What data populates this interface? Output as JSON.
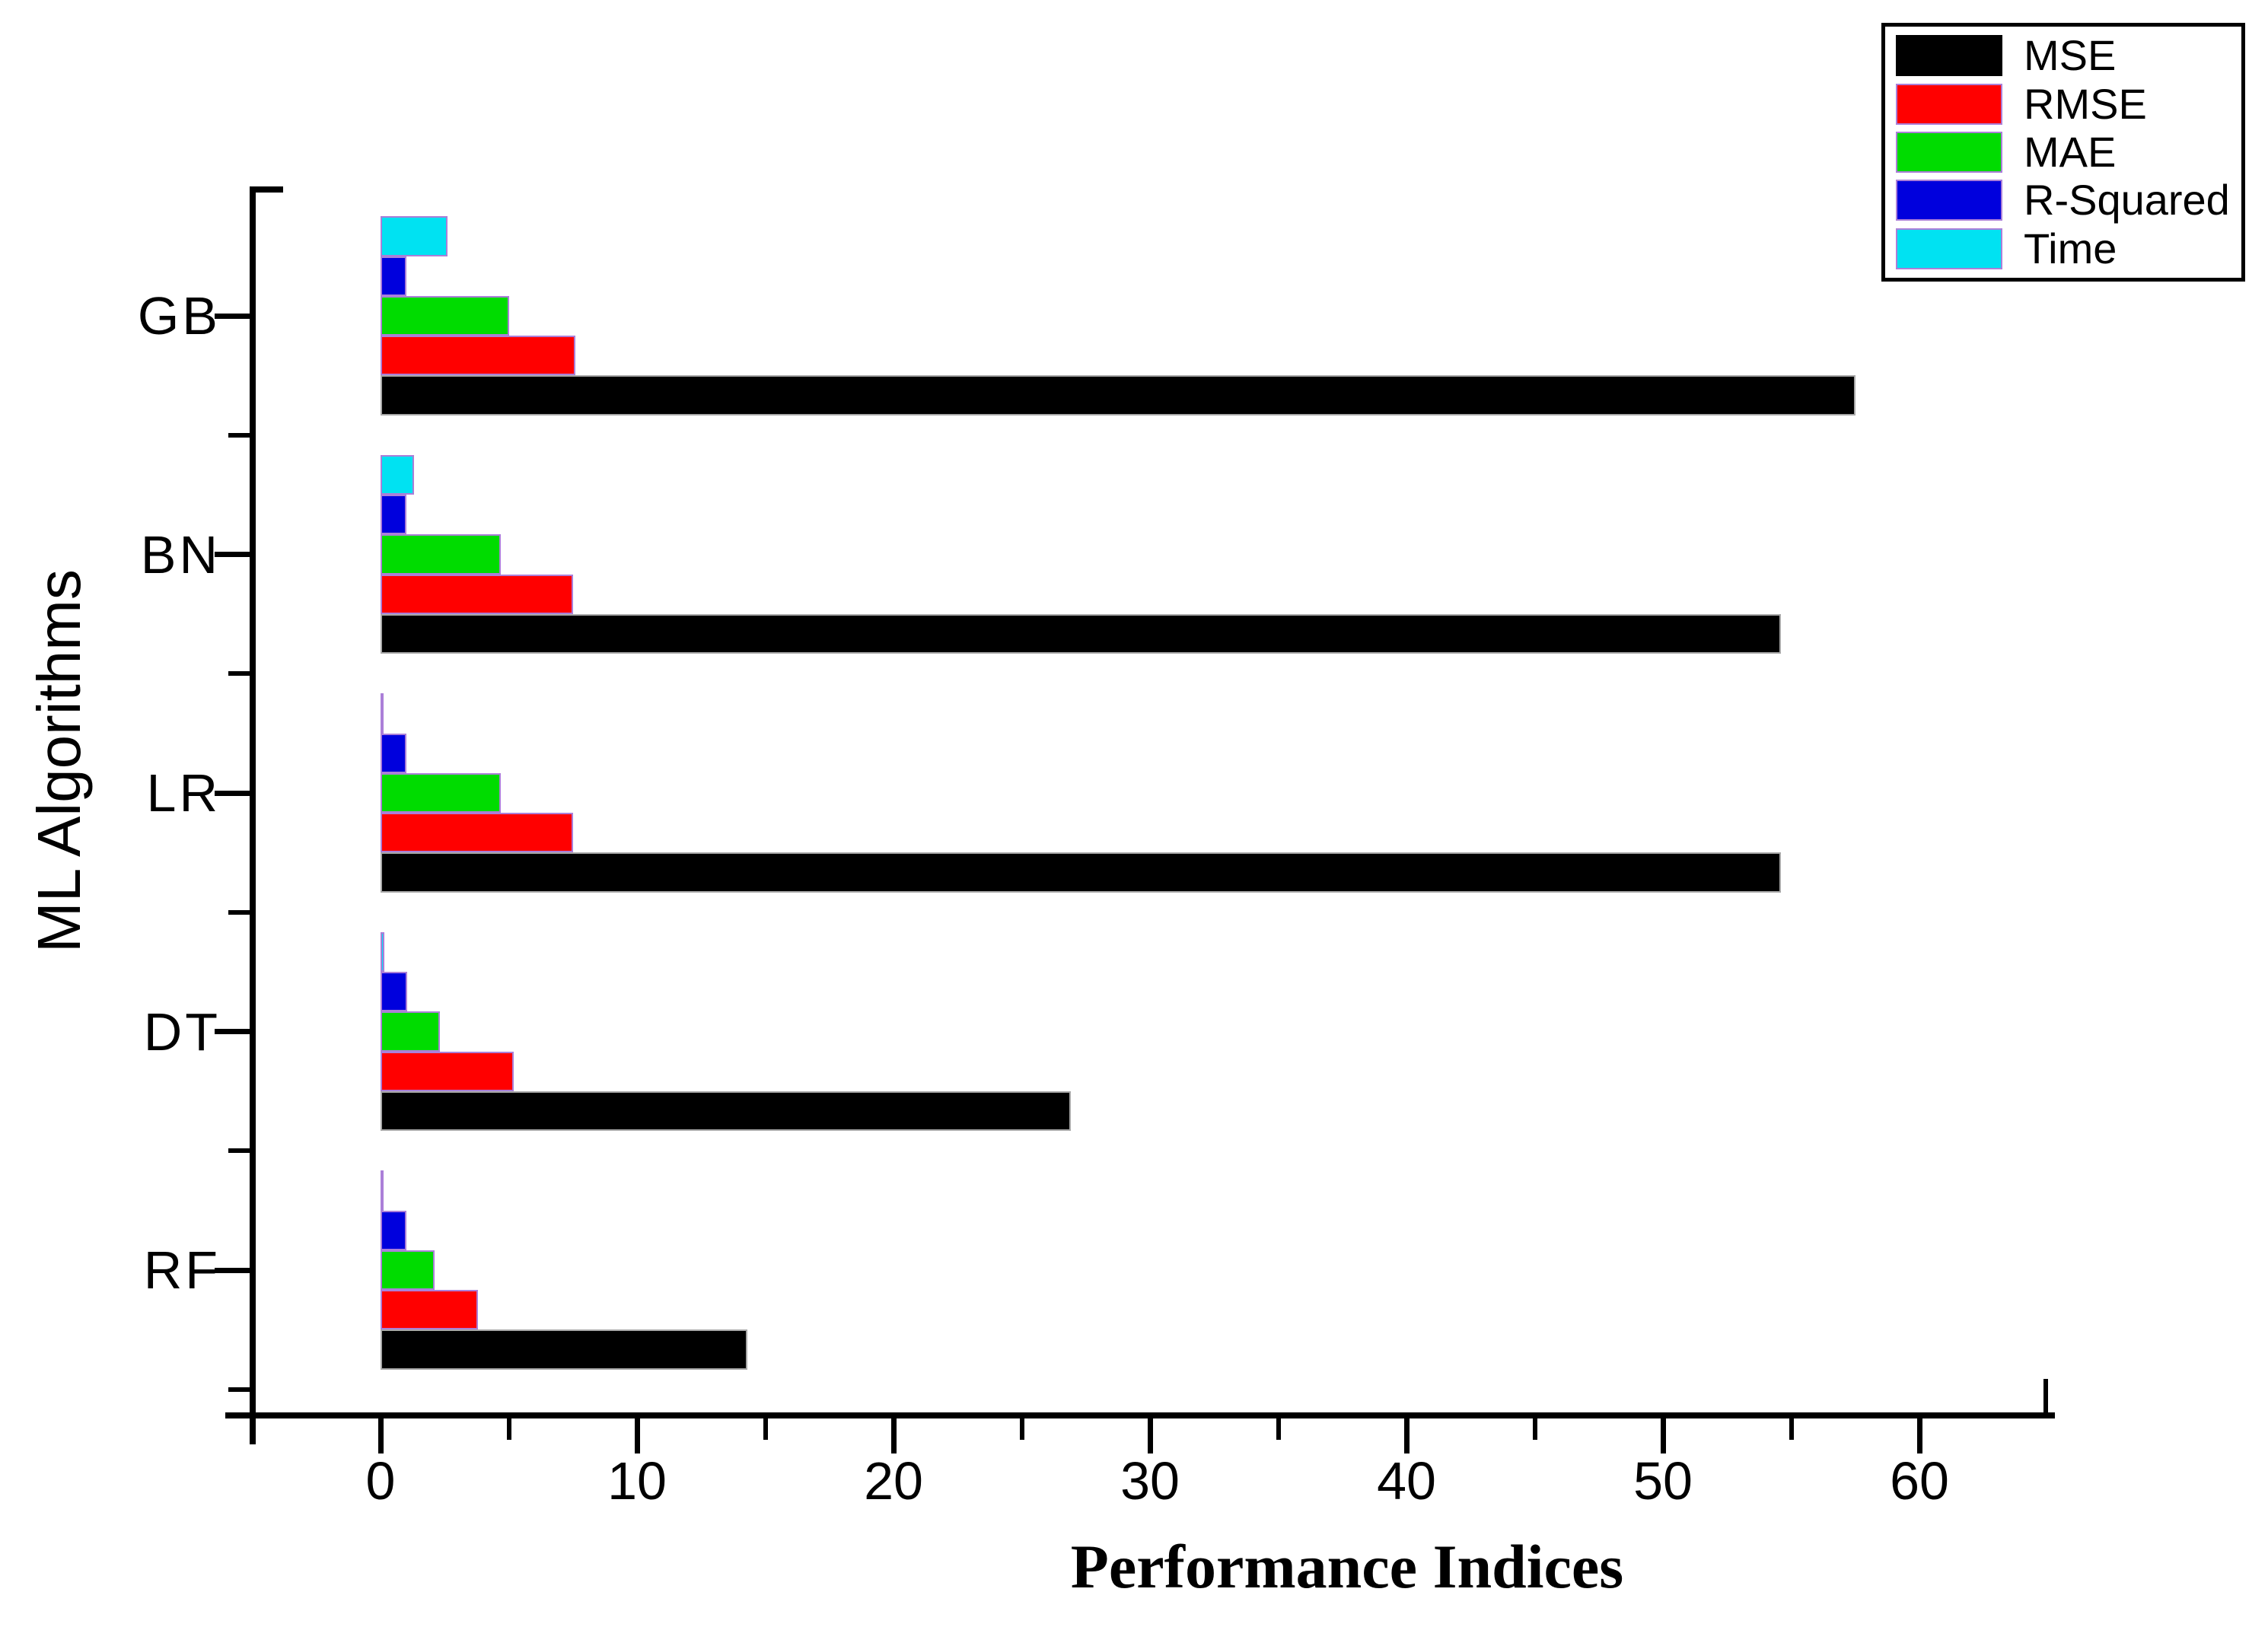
{
  "chart_data": {
    "type": "bar",
    "orientation": "horizontal",
    "xlabel": "Performance Indices",
    "ylabel": "ML Algorithms",
    "categories": [
      "GB",
      "BN",
      "LR",
      "DT",
      "RF"
    ],
    "series": [
      {
        "name": "MSE",
        "color": "#000000",
        "values": [
          57.5,
          54.6,
          54.6,
          26.9,
          14.3
        ]
      },
      {
        "name": "RMSE",
        "color": "#ff0000",
        "values": [
          7.6,
          7.5,
          7.5,
          5.2,
          3.8
        ]
      },
      {
        "name": "MAE",
        "color": "#00dc00",
        "values": [
          5.0,
          4.7,
          4.7,
          2.3,
          2.1
        ]
      },
      {
        "name": "R-Squared",
        "color": "#0000dd",
        "values": [
          1.0,
          1.0,
          1.0,
          1.05,
          1.0
        ]
      },
      {
        "name": "Time",
        "color": "#00e2f2",
        "values": [
          2.6,
          1.3,
          0.05,
          0.15,
          0.08
        ]
      }
    ],
    "x_axis": {
      "lim": [
        -6.5,
        65.3
      ],
      "major_ticks": [
        0,
        10,
        20,
        30,
        40,
        50,
        60
      ],
      "major_tick_labels": [
        "0",
        "10",
        "20",
        "30",
        "40",
        "50",
        "60"
      ],
      "minor_ticks": [
        -5,
        5,
        15,
        25,
        35,
        45,
        55
      ],
      "end_tick": 65
    },
    "legend": {
      "position": "top-right",
      "entries": [
        "MSE",
        "RMSE",
        "MAE",
        "R-Squared",
        "Time"
      ]
    },
    "grid": false,
    "background": "#ffffff"
  }
}
